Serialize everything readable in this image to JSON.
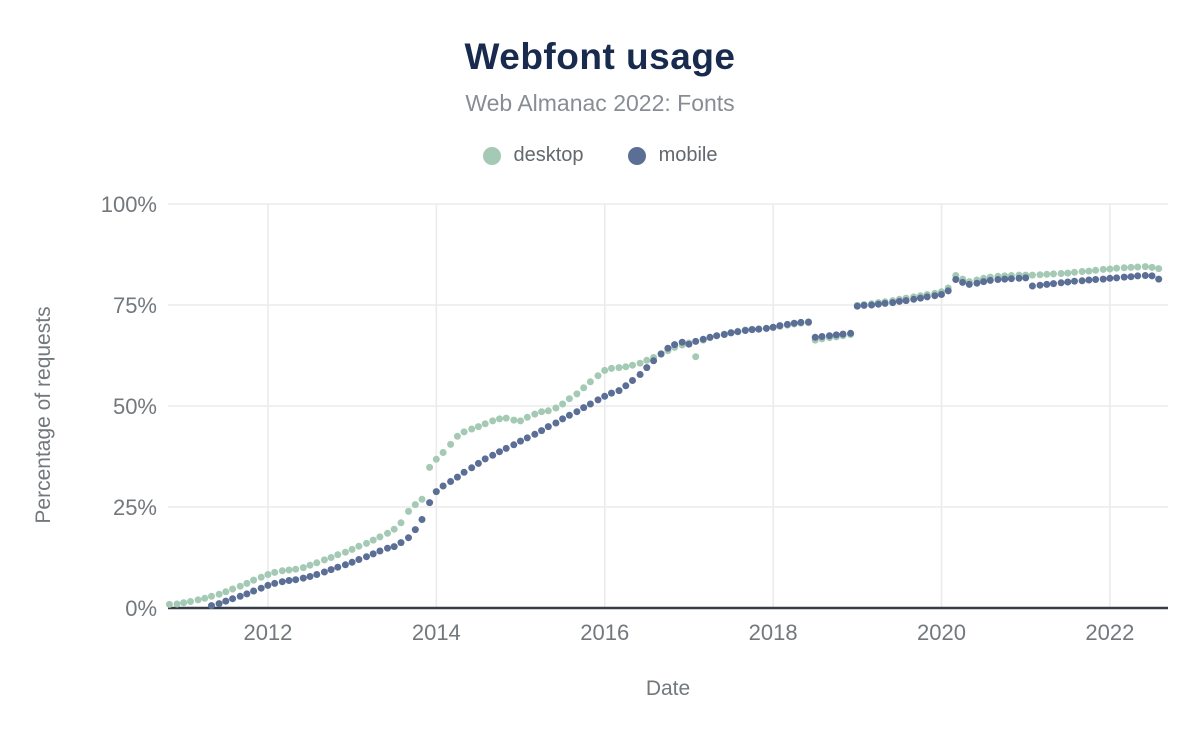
{
  "header": {
    "title": "Webfont usage",
    "subtitle": "Web Almanac 2022: Fonts"
  },
  "legend": {
    "items": [
      {
        "label": "desktop",
        "color": "#a4c9b4"
      },
      {
        "label": "mobile",
        "color": "#5b6e96"
      }
    ]
  },
  "axes": {
    "y_label": "Percentage of requests",
    "x_label": "Date",
    "y_tick_labels": [
      "0%",
      "25%",
      "50%",
      "75%",
      "100%"
    ],
    "x_tick_labels": [
      "2012",
      "2014",
      "2016",
      "2018",
      "2020",
      "2022"
    ]
  },
  "colors": {
    "title": "#182a4e",
    "subtitle": "#888d94",
    "tick_text": "#73787d",
    "grid": "#ebebeb",
    "axis_line": "#363d48",
    "desktop": "#a4c9b4",
    "mobile": "#5b6e96"
  },
  "chart_data": {
    "type": "scatter",
    "title": "Webfont usage",
    "subtitle": "Web Almanac 2022: Fonts",
    "xlabel": "Date",
    "ylabel": "Percentage of requests",
    "unit": "percent",
    "xlim": [
      2010.813,
      2022.69
    ],
    "ylim": [
      0,
      100
    ],
    "x_ticks": [
      2012,
      2014,
      2016,
      2018,
      2020,
      2022
    ],
    "y_ticks": [
      0,
      25,
      50,
      75,
      100
    ],
    "grid": true,
    "legend_position": "top",
    "series": [
      {
        "name": "desktop",
        "color": "#a4c9b4",
        "points": [
          [
            2010.83,
            0.9
          ],
          [
            2010.92,
            1.0
          ],
          [
            2011.0,
            1.3
          ],
          [
            2011.08,
            1.6
          ],
          [
            2011.17,
            2.0
          ],
          [
            2011.25,
            2.4
          ],
          [
            2011.33,
            2.9
          ],
          [
            2011.42,
            3.4
          ],
          [
            2011.5,
            4.0
          ],
          [
            2011.58,
            4.7
          ],
          [
            2011.67,
            5.4
          ],
          [
            2011.75,
            6.1
          ],
          [
            2011.83,
            6.9
          ],
          [
            2011.92,
            7.6
          ],
          [
            2012.0,
            8.3
          ],
          [
            2012.08,
            8.8
          ],
          [
            2012.17,
            9.2
          ],
          [
            2012.25,
            9.4
          ],
          [
            2012.33,
            9.6
          ],
          [
            2012.42,
            10.0
          ],
          [
            2012.5,
            10.6
          ],
          [
            2012.58,
            11.2
          ],
          [
            2012.67,
            11.9
          ],
          [
            2012.75,
            12.5
          ],
          [
            2012.83,
            13.2
          ],
          [
            2012.92,
            13.8
          ],
          [
            2013.0,
            14.5
          ],
          [
            2013.08,
            15.3
          ],
          [
            2013.17,
            16.0
          ],
          [
            2013.25,
            16.8
          ],
          [
            2013.33,
            17.6
          ],
          [
            2013.42,
            18.5
          ],
          [
            2013.5,
            19.5
          ],
          [
            2013.58,
            21.1
          ],
          [
            2013.67,
            23.9
          ],
          [
            2013.75,
            25.6
          ],
          [
            2013.83,
            26.9
          ],
          [
            2013.92,
            34.8
          ],
          [
            2014.0,
            36.8
          ],
          [
            2014.08,
            38.5
          ],
          [
            2014.17,
            40.5
          ],
          [
            2014.25,
            42.5
          ],
          [
            2014.33,
            43.6
          ],
          [
            2014.42,
            44.3
          ],
          [
            2014.5,
            44.9
          ],
          [
            2014.58,
            45.6
          ],
          [
            2014.67,
            46.3
          ],
          [
            2014.75,
            46.8
          ],
          [
            2014.83,
            47.0
          ],
          [
            2014.92,
            46.5
          ],
          [
            2015.0,
            46.3
          ],
          [
            2015.08,
            47.2
          ],
          [
            2015.17,
            48.0
          ],
          [
            2015.25,
            48.6
          ],
          [
            2015.33,
            48.8
          ],
          [
            2015.42,
            49.5
          ],
          [
            2015.5,
            50.5
          ],
          [
            2015.58,
            51.8
          ],
          [
            2015.67,
            53.0
          ],
          [
            2015.75,
            54.5
          ],
          [
            2015.83,
            56.0
          ],
          [
            2015.92,
            57.5
          ],
          [
            2016.0,
            58.8
          ],
          [
            2016.08,
            59.3
          ],
          [
            2016.17,
            59.5
          ],
          [
            2016.25,
            59.7
          ],
          [
            2016.33,
            60.1
          ],
          [
            2016.42,
            60.6
          ],
          [
            2016.5,
            61.3
          ],
          [
            2016.58,
            62.0
          ],
          [
            2016.67,
            62.8
          ],
          [
            2016.75,
            63.7
          ],
          [
            2016.83,
            64.5
          ],
          [
            2016.92,
            65.1
          ],
          [
            2017.0,
            65.6
          ],
          [
            2017.08,
            62.2
          ],
          [
            2017.17,
            66.3
          ],
          [
            2017.25,
            66.9
          ],
          [
            2017.33,
            67.4
          ],
          [
            2017.42,
            67.8
          ],
          [
            2017.5,
            68.2
          ],
          [
            2017.58,
            68.5
          ],
          [
            2017.67,
            68.8
          ],
          [
            2017.75,
            69.0
          ],
          [
            2017.83,
            69.1
          ],
          [
            2017.92,
            69.2
          ],
          [
            2018.0,
            69.4
          ],
          [
            2018.08,
            69.7
          ],
          [
            2018.17,
            70.0
          ],
          [
            2018.25,
            70.3
          ],
          [
            2018.33,
            70.5
          ],
          [
            2018.42,
            70.6
          ],
          [
            2018.5,
            66.3
          ],
          [
            2018.58,
            66.6
          ],
          [
            2018.67,
            66.9
          ],
          [
            2018.75,
            67.1
          ],
          [
            2018.83,
            67.4
          ],
          [
            2018.92,
            67.7
          ],
          [
            2019.0,
            74.9
          ],
          [
            2019.08,
            75.1
          ],
          [
            2019.17,
            75.3
          ],
          [
            2019.25,
            75.6
          ],
          [
            2019.33,
            75.8
          ],
          [
            2019.42,
            76.1
          ],
          [
            2019.5,
            76.4
          ],
          [
            2019.58,
            76.7
          ],
          [
            2019.67,
            77.0
          ],
          [
            2019.75,
            77.3
          ],
          [
            2019.83,
            77.6
          ],
          [
            2019.92,
            77.9
          ],
          [
            2020.0,
            78.3
          ],
          [
            2020.08,
            79.2
          ],
          [
            2020.17,
            82.3
          ],
          [
            2020.25,
            81.4
          ],
          [
            2020.33,
            80.8
          ],
          [
            2020.42,
            81.2
          ],
          [
            2020.5,
            81.6
          ],
          [
            2020.58,
            81.9
          ],
          [
            2020.67,
            82.1
          ],
          [
            2020.75,
            82.2
          ],
          [
            2020.83,
            82.3
          ],
          [
            2020.92,
            82.4
          ],
          [
            2021.0,
            82.4
          ],
          [
            2021.08,
            82.4
          ],
          [
            2021.17,
            82.5
          ],
          [
            2021.25,
            82.6
          ],
          [
            2021.33,
            82.7
          ],
          [
            2021.42,
            82.8
          ],
          [
            2021.5,
            82.9
          ],
          [
            2021.58,
            83.1
          ],
          [
            2021.67,
            83.3
          ],
          [
            2021.75,
            83.4
          ],
          [
            2021.83,
            83.6
          ],
          [
            2021.92,
            83.8
          ],
          [
            2022.0,
            83.9
          ],
          [
            2022.08,
            84.1
          ],
          [
            2022.17,
            84.2
          ],
          [
            2022.25,
            84.3
          ],
          [
            2022.33,
            84.4
          ],
          [
            2022.42,
            84.5
          ],
          [
            2022.5,
            84.3
          ],
          [
            2022.58,
            84.0
          ]
        ]
      },
      {
        "name": "mobile",
        "color": "#5b6e96",
        "points": [
          [
            2011.33,
            0.6
          ],
          [
            2011.42,
            1.1
          ],
          [
            2011.5,
            1.7
          ],
          [
            2011.58,
            2.3
          ],
          [
            2011.67,
            2.9
          ],
          [
            2011.75,
            3.5
          ],
          [
            2011.83,
            4.2
          ],
          [
            2011.92,
            4.9
          ],
          [
            2012.0,
            5.6
          ],
          [
            2012.08,
            6.1
          ],
          [
            2012.17,
            6.5
          ],
          [
            2012.25,
            6.8
          ],
          [
            2012.33,
            7.0
          ],
          [
            2012.42,
            7.4
          ],
          [
            2012.5,
            7.8
          ],
          [
            2012.58,
            8.3
          ],
          [
            2012.67,
            8.9
          ],
          [
            2012.75,
            9.5
          ],
          [
            2012.83,
            10.1
          ],
          [
            2012.92,
            10.7
          ],
          [
            2013.0,
            11.3
          ],
          [
            2013.08,
            12.0
          ],
          [
            2013.17,
            12.7
          ],
          [
            2013.25,
            13.4
          ],
          [
            2013.33,
            14.1
          ],
          [
            2013.42,
            14.8
          ],
          [
            2013.5,
            15.2
          ],
          [
            2013.58,
            16.2
          ],
          [
            2013.67,
            17.4
          ],
          [
            2013.75,
            19.4
          ],
          [
            2013.83,
            21.9
          ],
          [
            2013.92,
            26.1
          ],
          [
            2014.0,
            28.8
          ],
          [
            2014.08,
            30.2
          ],
          [
            2014.17,
            31.3
          ],
          [
            2014.25,
            32.4
          ],
          [
            2014.33,
            33.6
          ],
          [
            2014.42,
            34.7
          ],
          [
            2014.5,
            35.8
          ],
          [
            2014.58,
            36.9
          ],
          [
            2014.67,
            37.8
          ],
          [
            2014.75,
            38.7
          ],
          [
            2014.83,
            39.5
          ],
          [
            2014.92,
            40.4
          ],
          [
            2015.0,
            41.3
          ],
          [
            2015.08,
            42.1
          ],
          [
            2015.17,
            43.0
          ],
          [
            2015.25,
            43.9
          ],
          [
            2015.33,
            44.9
          ],
          [
            2015.42,
            45.8
          ],
          [
            2015.5,
            46.8
          ],
          [
            2015.58,
            47.7
          ],
          [
            2015.67,
            48.6
          ],
          [
            2015.75,
            49.6
          ],
          [
            2015.83,
            50.5
          ],
          [
            2015.92,
            51.5
          ],
          [
            2016.0,
            52.4
          ],
          [
            2016.08,
            53.2
          ],
          [
            2016.17,
            53.8
          ],
          [
            2016.25,
            55.0
          ],
          [
            2016.33,
            56.3
          ],
          [
            2016.42,
            57.8
          ],
          [
            2016.5,
            59.5
          ],
          [
            2016.58,
            61.2
          ],
          [
            2016.67,
            62.9
          ],
          [
            2016.75,
            64.3
          ],
          [
            2016.83,
            65.2
          ],
          [
            2016.92,
            65.8
          ],
          [
            2017.0,
            65.3
          ],
          [
            2017.08,
            66.0
          ],
          [
            2017.17,
            66.5
          ],
          [
            2017.25,
            67.0
          ],
          [
            2017.33,
            67.4
          ],
          [
            2017.42,
            67.7
          ],
          [
            2017.5,
            68.1
          ],
          [
            2017.58,
            68.4
          ],
          [
            2017.67,
            68.7
          ],
          [
            2017.75,
            68.9
          ],
          [
            2017.83,
            69.0
          ],
          [
            2017.92,
            69.2
          ],
          [
            2018.0,
            69.5
          ],
          [
            2018.08,
            69.9
          ],
          [
            2018.17,
            70.2
          ],
          [
            2018.25,
            70.5
          ],
          [
            2018.33,
            70.7
          ],
          [
            2018.42,
            70.8
          ],
          [
            2018.5,
            67.0
          ],
          [
            2018.58,
            67.2
          ],
          [
            2018.67,
            67.4
          ],
          [
            2018.75,
            67.6
          ],
          [
            2018.83,
            67.8
          ],
          [
            2018.92,
            68.0
          ],
          [
            2019.0,
            74.7
          ],
          [
            2019.08,
            74.9
          ],
          [
            2019.17,
            75.0
          ],
          [
            2019.25,
            75.2
          ],
          [
            2019.33,
            75.4
          ],
          [
            2019.42,
            75.6
          ],
          [
            2019.5,
            75.9
          ],
          [
            2019.58,
            76.1
          ],
          [
            2019.67,
            76.4
          ],
          [
            2019.75,
            76.7
          ],
          [
            2019.83,
            77.0
          ],
          [
            2019.92,
            77.3
          ],
          [
            2020.0,
            77.6
          ],
          [
            2020.08,
            78.5
          ],
          [
            2020.17,
            81.3
          ],
          [
            2020.25,
            80.6
          ],
          [
            2020.33,
            80.1
          ],
          [
            2020.42,
            80.4
          ],
          [
            2020.5,
            80.8
          ],
          [
            2020.58,
            81.1
          ],
          [
            2020.67,
            81.3
          ],
          [
            2020.75,
            81.4
          ],
          [
            2020.83,
            81.5
          ],
          [
            2020.92,
            81.6
          ],
          [
            2021.0,
            81.7
          ],
          [
            2021.08,
            79.7
          ],
          [
            2021.17,
            79.9
          ],
          [
            2021.25,
            80.1
          ],
          [
            2021.33,
            80.3
          ],
          [
            2021.42,
            80.5
          ],
          [
            2021.5,
            80.7
          ],
          [
            2021.58,
            80.9
          ],
          [
            2021.67,
            81.0
          ],
          [
            2021.75,
            81.2
          ],
          [
            2021.83,
            81.3
          ],
          [
            2021.92,
            81.4
          ],
          [
            2022.0,
            81.6
          ],
          [
            2022.08,
            81.7
          ],
          [
            2022.17,
            81.9
          ],
          [
            2022.25,
            82.0
          ],
          [
            2022.33,
            82.2
          ],
          [
            2022.42,
            82.3
          ],
          [
            2022.5,
            82.2
          ],
          [
            2022.58,
            81.4
          ]
        ]
      }
    ]
  }
}
